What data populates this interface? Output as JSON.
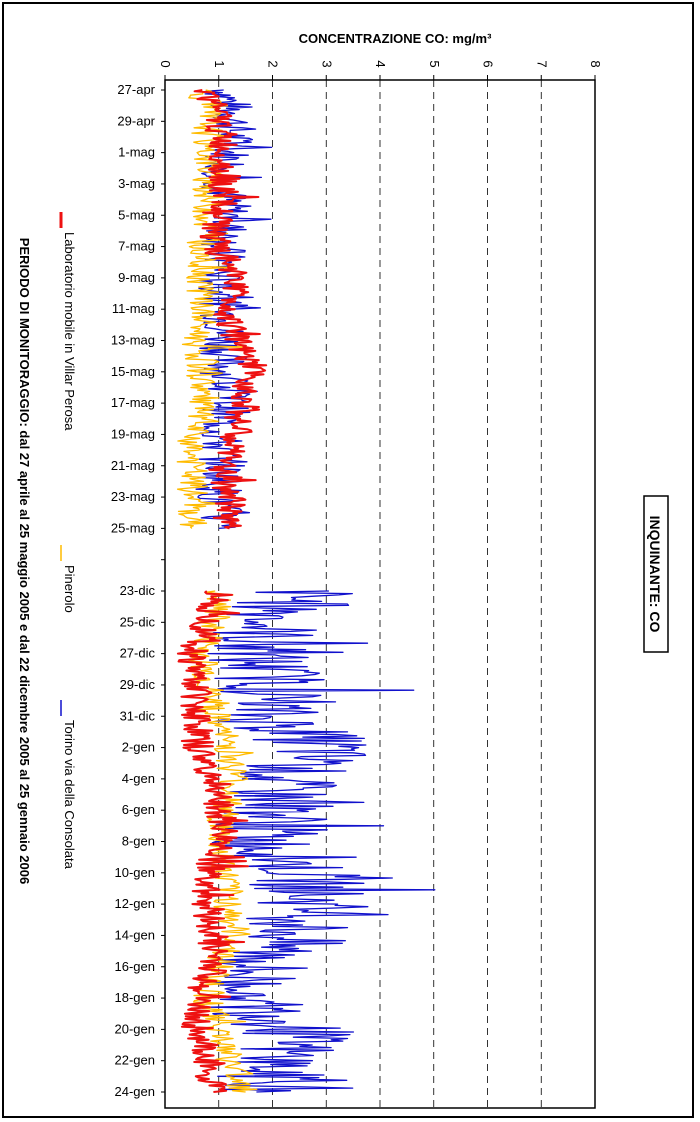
{
  "pollutant_label": "INQUINANTE: CO",
  "footer": "PERIODO DI MONITORAGGIO: dal 27 aprile al 25 maggio 2005 e dal 22 dicembre 2005 al 25 gennaio 2006",
  "chart_data": {
    "type": "line",
    "title": "CONCENTRAZIONE CO: mg/m³",
    "xlabel": "",
    "ylabel": "",
    "value_axis": {
      "min": 0,
      "max": 8,
      "ticks": [
        "0",
        "1",
        "2",
        "3",
        "4",
        "5",
        "6",
        "7",
        "8"
      ]
    },
    "grid": "dashed vertical at each integer",
    "legend_position": "bottom",
    "categories": [
      "27-apr",
      "29-apr",
      "1-mag",
      "3-mag",
      "5-mag",
      "7-mag",
      "9-mag",
      "11-mag",
      "13-mag",
      "15-mag",
      "17-mag",
      "19-mag",
      "21-mag",
      "23-mag",
      "25-mag",
      "",
      "23-dic",
      "25-dic",
      "27-dic",
      "29-dic",
      "31-dic",
      "2-gen",
      "4-gen",
      "6-gen",
      "8-gen",
      "10-gen",
      "12-gen",
      "14-gen",
      "16-gen",
      "18-gen",
      "20-gen",
      "22-gen",
      "24-gen"
    ],
    "series": [
      {
        "name": "Laboratorio mobile in Villar Perosa",
        "color": "#ee1111",
        "values": [
          0.8,
          1.0,
          1.1,
          1.1,
          1.0,
          0.9,
          1.4,
          1.2,
          1.3,
          1.6,
          1.5,
          1.3,
          1.1,
          1.2,
          1.2,
          null,
          1.0,
          0.8,
          0.5,
          0.6,
          0.6,
          0.6,
          0.9,
          1.0,
          1.1,
          0.8,
          0.8,
          0.9,
          0.9,
          0.6,
          0.6,
          0.8,
          0.9
        ]
      },
      {
        "name": "Pinerolo",
        "color": "#ffbb00",
        "values": [
          0.7,
          0.8,
          0.8,
          0.8,
          0.8,
          0.7,
          0.7,
          0.7,
          0.6,
          0.7,
          0.7,
          0.5,
          0.5,
          0.5,
          0.5,
          null,
          1.0,
          0.9,
          0.7,
          0.8,
          0.9,
          1.2,
          1.3,
          1.1,
          1.0,
          1.1,
          1.2,
          1.3,
          1.0,
          0.8,
          1.0,
          1.2,
          1.5
        ]
      },
      {
        "name": "Torino via della Consolata",
        "color": "#1111cc",
        "values": [
          1.1,
          1.3,
          1.2,
          1.1,
          1.2,
          1.1,
          1.0,
          1.1,
          1.1,
          1.1,
          1.2,
          1.0,
          1.1,
          1.0,
          1.0,
          null,
          2.6,
          2.0,
          1.6,
          2.1,
          1.8,
          3.0,
          2.1,
          2.2,
          1.8,
          2.6,
          2.8,
          2.4,
          1.7,
          1.4,
          2.5,
          2.1,
          1.7
        ]
      }
    ]
  }
}
